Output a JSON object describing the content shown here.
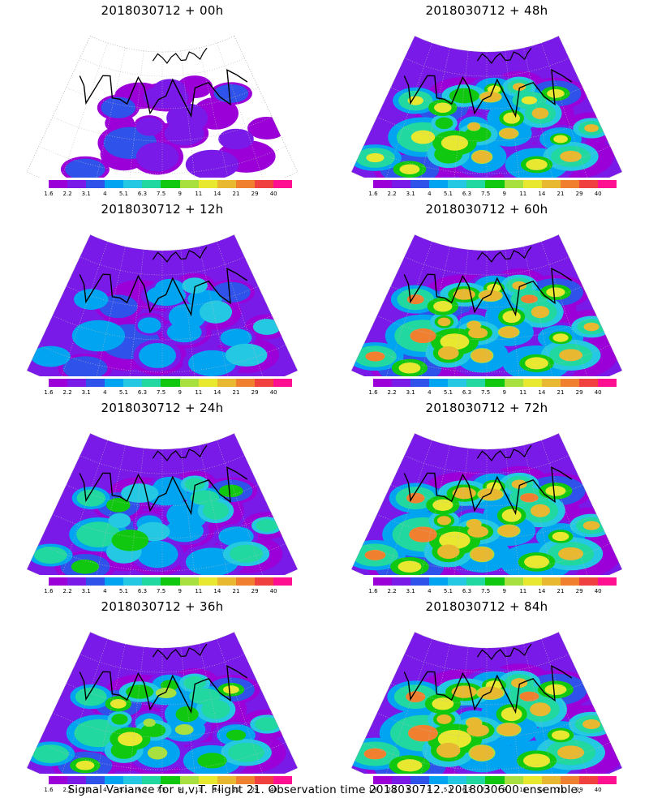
{
  "colorbar": {
    "colors": [
      "#9b00d8",
      "#7a1ae8",
      "#2f52ea",
      "#00a4f0",
      "#25c8e2",
      "#20d8a0",
      "#10c810",
      "#a8e040",
      "#e8e830",
      "#e8b830",
      "#f08030",
      "#f04040",
      "#ff1090"
    ],
    "labels": [
      "1.6",
      "2.2",
      "3.1",
      "4",
      "5.1",
      "6.3",
      "7.5",
      "9",
      "11",
      "14",
      "21",
      "29",
      "40"
    ]
  },
  "panels": [
    {
      "title": "2018030712 + 00h",
      "level": 0
    },
    {
      "title": "2018030712 + 48h",
      "level": 4
    },
    {
      "title": "2018030712 + 12h",
      "level": 1
    },
    {
      "title": "2018030712 + 60h",
      "level": 5
    },
    {
      "title": "2018030712 + 24h",
      "level": 2
    },
    {
      "title": "2018030712 + 72h",
      "level": 6
    },
    {
      "title": "2018030712 + 36h",
      "level": 3
    },
    {
      "title": "2018030712 + 84h",
      "level": 7
    }
  ],
  "footer": "Signal Variance for u,v,T. Flight 21. Observation time 2018030712. 2018030600 ensemble."
}
